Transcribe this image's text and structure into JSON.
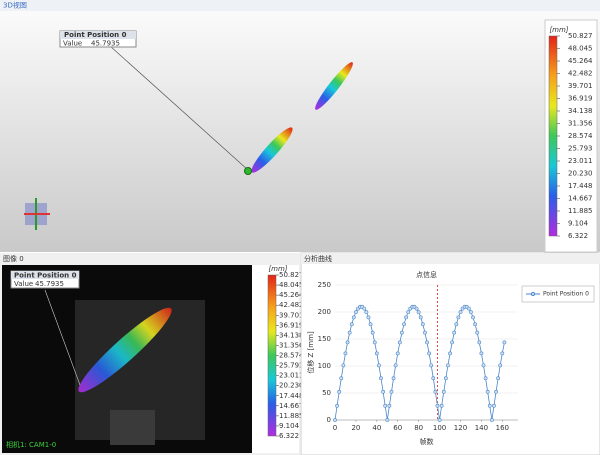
{
  "view3d": {
    "tab": "3D视图",
    "probe": {
      "title": "Point Position 0",
      "key": "Value",
      "value": "45.7935"
    }
  },
  "colorbar": {
    "unit": "[mm]",
    "labels": [
      "50.827",
      "48.045",
      "45.264",
      "42.482",
      "39.701",
      "36.919",
      "34.138",
      "31.356",
      "28.574",
      "25.793",
      "23.011",
      "20.230",
      "17.448",
      "14.667",
      "11.885",
      "9.104",
      "6.322"
    ]
  },
  "image_panel": {
    "tab": "图像 0",
    "probe": {
      "title": "Point Position 0",
      "key": "Value",
      "value": "45.7935"
    },
    "camera": "相机1: CAM1-0"
  },
  "analysis_panel": {
    "tab": "分析曲线"
  },
  "chart_data": {
    "type": "line",
    "title": "点信息",
    "x_label": "帧数",
    "y_label": "位移 Z [mm]",
    "x": [
      0,
      2,
      4,
      6,
      8,
      10,
      12,
      14,
      16,
      18,
      20,
      22,
      24,
      26,
      28,
      30,
      32,
      34,
      36,
      38,
      40,
      42,
      44,
      46,
      48,
      50,
      52,
      54,
      56,
      58,
      60,
      62,
      64,
      66,
      68,
      70,
      72,
      74,
      76,
      78,
      80,
      82,
      84,
      86,
      88,
      90,
      92,
      94,
      96,
      98,
      100,
      102,
      104,
      106,
      108,
      110,
      112,
      114,
      116,
      118,
      120,
      122,
      124,
      126,
      128,
      130,
      132,
      134,
      136,
      138,
      140,
      142,
      144,
      146,
      148,
      150,
      152,
      154,
      156,
      158,
      160,
      162
    ],
    "series": [
      {
        "name": "Point Position 0",
        "color": "#4a86c8",
        "values": [
          0,
          26.3,
          52.2,
          77.3,
          101.2,
          123.4,
          143.7,
          161.8,
          177.3,
          190.0,
          199.7,
          206.3,
          209.6,
          209.6,
          206.3,
          199.7,
          190.0,
          177.3,
          161.8,
          143.7,
          123.4,
          101.2,
          77.3,
          52.2,
          26.3,
          0,
          26.3,
          52.2,
          77.3,
          101.2,
          123.4,
          143.7,
          161.8,
          177.3,
          190.0,
          199.7,
          206.3,
          209.6,
          209.6,
          206.3,
          199.7,
          190.0,
          177.3,
          161.8,
          143.7,
          123.4,
          101.2,
          77.3,
          52.2,
          26.3,
          0,
          26.3,
          52.2,
          77.3,
          101.2,
          123.4,
          143.7,
          161.8,
          177.3,
          190.0,
          199.7,
          206.3,
          209.6,
          209.6,
          206.3,
          199.7,
          190.0,
          177.3,
          161.8,
          143.7,
          123.4,
          101.2,
          77.3,
          52.2,
          26.3,
          0,
          26.3,
          52.2,
          77.3,
          101.2,
          123.4,
          143.7
        ]
      }
    ],
    "cursor_x": 98,
    "xlim": [
      0,
      175
    ],
    "xticks": [
      0,
      20,
      40,
      60,
      80,
      100,
      120,
      140,
      160
    ],
    "ylim": [
      0,
      250
    ],
    "yticks": [
      0,
      50,
      100,
      150,
      200,
      250
    ],
    "grid": true
  }
}
